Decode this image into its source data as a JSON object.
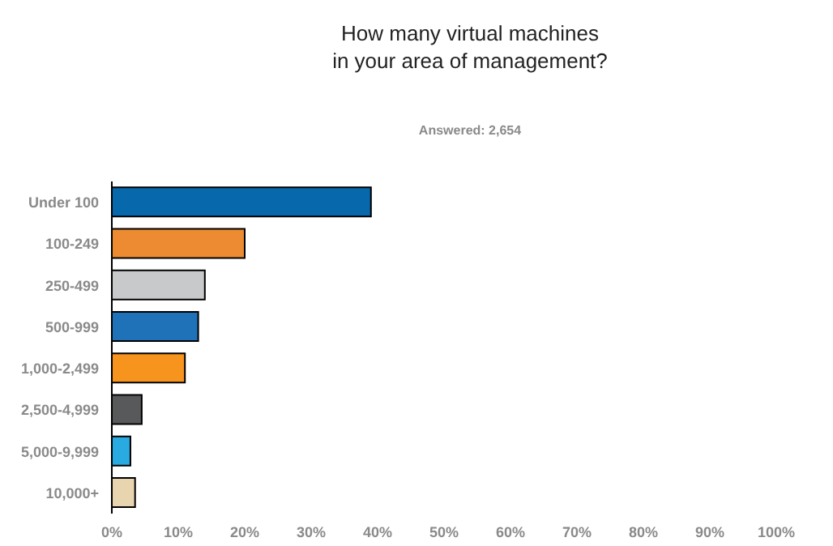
{
  "chart_data": {
    "type": "bar",
    "orientation": "horizontal",
    "title": "How many virtual machines\nin your area of management?",
    "subtitle": "Answered: 2,654",
    "categories": [
      "Under 100",
      "100-249",
      "250-499",
      "500-999",
      "1,000-2,499",
      "2,500-4,999",
      "5,000-9,999",
      "10,000+"
    ],
    "values": [
      39,
      20,
      14,
      13,
      11,
      4.5,
      2.8,
      3.5
    ],
    "colors": [
      "#0868ac",
      "#ec8b31",
      "#c8c9cb",
      "#1f72b8",
      "#f7941d",
      "#58595b",
      "#29aae1",
      "#e8d5b0"
    ],
    "xlim": [
      0,
      100
    ],
    "xticks": [
      {
        "value": 0,
        "label": "0%"
      },
      {
        "value": 10,
        "label": "10%"
      },
      {
        "value": 20,
        "label": "20%"
      },
      {
        "value": 30,
        "label": "30%"
      },
      {
        "value": 40,
        "label": "40%"
      },
      {
        "value": 50,
        "label": "50%"
      },
      {
        "value": 60,
        "label": "60%"
      },
      {
        "value": 70,
        "label": "70%"
      },
      {
        "value": 80,
        "label": "80%"
      },
      {
        "value": 90,
        "label": "90%"
      },
      {
        "value": 100,
        "label": "100%"
      }
    ],
    "grid": false,
    "legend": false
  }
}
